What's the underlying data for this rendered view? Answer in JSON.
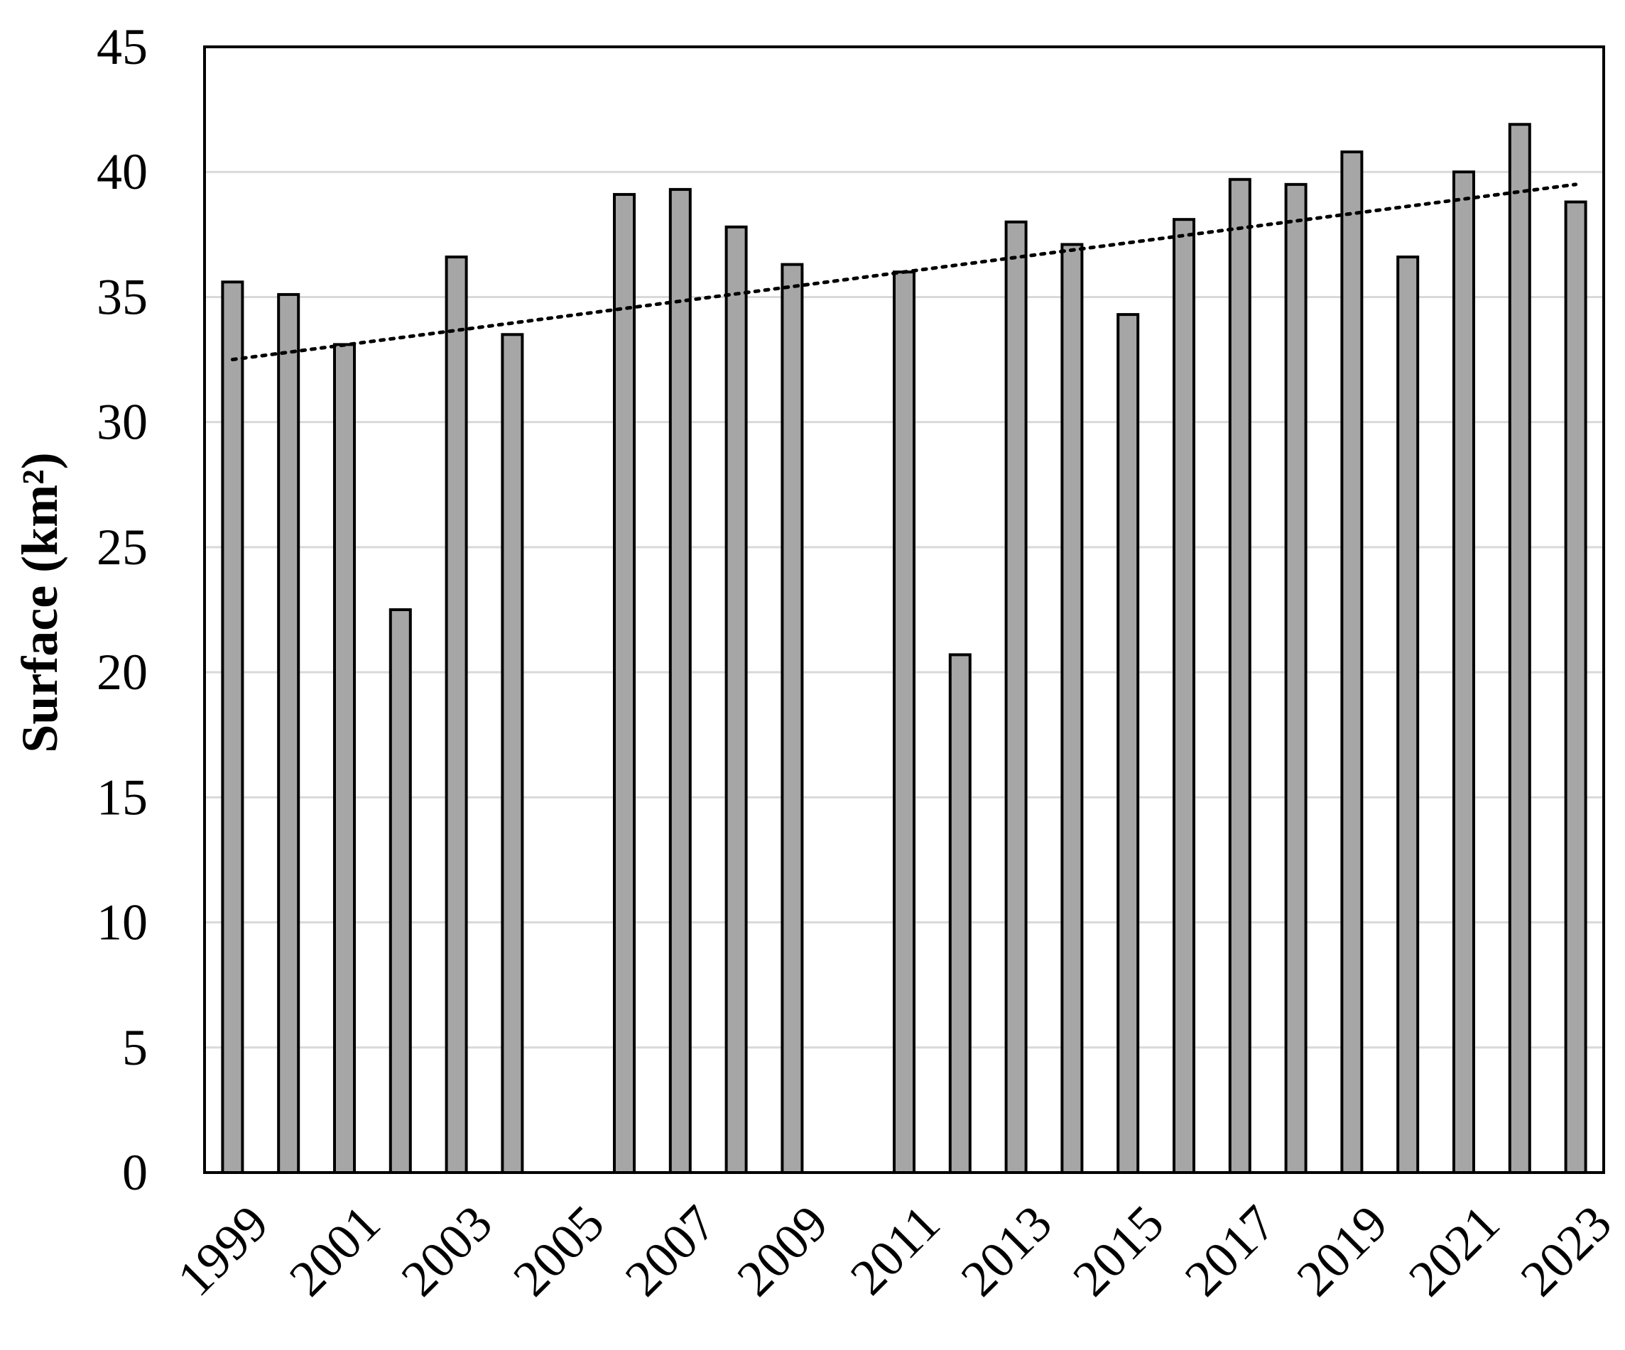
{
  "chart_data": {
    "type": "bar",
    "title": "",
    "xlabel": "",
    "ylabel": "Surface (km²)",
    "ylim": [
      0,
      45
    ],
    "y_ticks": [
      0,
      5,
      10,
      15,
      20,
      25,
      30,
      35,
      40,
      45
    ],
    "x_tick_labels": [
      "1999",
      "2001",
      "2003",
      "2005",
      "2007",
      "2009",
      "2011",
      "2013",
      "2015",
      "2017",
      "2019",
      "2021",
      "2023"
    ],
    "categories": [
      "1999",
      "2000",
      "2001",
      "2002",
      "2003",
      "2004",
      "2005",
      "2006",
      "2007",
      "2008",
      "2009",
      "2010",
      "2011",
      "2012",
      "2013",
      "2014",
      "2015",
      "2016",
      "2017",
      "2018",
      "2019",
      "2020",
      "2021",
      "2022",
      "2023"
    ],
    "values": [
      35.6,
      35.1,
      33.1,
      22.5,
      36.6,
      33.5,
      null,
      39.1,
      39.3,
      37.8,
      36.3,
      null,
      36.0,
      20.7,
      38.0,
      37.1,
      34.3,
      38.1,
      39.7,
      39.5,
      40.8,
      36.6,
      40.0,
      41.9,
      38.8
    ],
    "trendline": {
      "style": "dotted",
      "x": [
        "1999",
        "2023"
      ],
      "y": [
        32.5,
        39.5
      ]
    },
    "grid": true,
    "bar_fill": "#a6a6a6",
    "bar_stroke": "#000000",
    "grid_color": "#d9d9d9",
    "legend": "none"
  }
}
